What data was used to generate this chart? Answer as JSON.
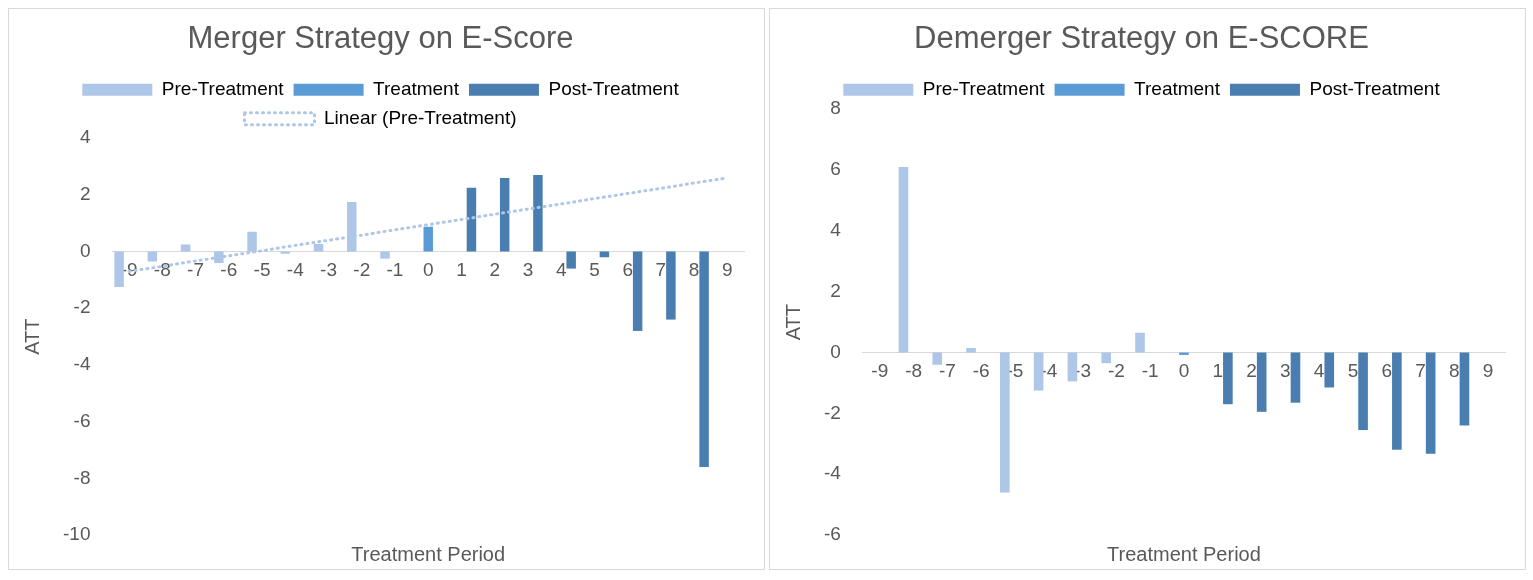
{
  "chart_data": [
    {
      "type": "bar",
      "title": "Merger Strategy on E-Score",
      "xlabel": "Treatment Period",
      "ylabel": "ATT",
      "legend": "top",
      "categories": [
        "-9",
        "-8",
        "-7",
        "-6",
        "-5",
        "-4",
        "-3",
        "-2",
        "-1",
        "0",
        "1",
        "2",
        "3",
        "4",
        "5",
        "6",
        "7",
        "8",
        "9"
      ],
      "ylim": [
        -10,
        4
      ],
      "yticks": [
        -10,
        -8,
        -6,
        -4,
        -2,
        0,
        2,
        4
      ],
      "series": [
        {
          "name": "Pre-Treatment",
          "color": "#aec6e8",
          "values": [
            -1.25,
            -0.35,
            0.25,
            -0.4,
            0.7,
            -0.08,
            0.27,
            1.75,
            -0.25,
            null,
            null,
            null,
            null,
            null,
            null,
            null,
            null,
            null,
            null
          ]
        },
        {
          "name": "Treatment",
          "color": "#5b9bd5",
          "values": [
            null,
            null,
            null,
            null,
            null,
            null,
            null,
            null,
            null,
            0.88,
            null,
            null,
            null,
            null,
            null,
            null,
            null,
            null,
            null
          ]
        },
        {
          "name": "Post-Treatment",
          "color": "#4a7eb0",
          "values": [
            null,
            null,
            null,
            null,
            null,
            null,
            null,
            null,
            null,
            null,
            2.25,
            2.6,
            2.7,
            -0.6,
            -0.2,
            -2.8,
            -2.4,
            -7.6,
            null
          ]
        },
        {
          "name": "Linear (Pre-Treatment)",
          "type": "line",
          "line_style": "dotted",
          "marker": "none",
          "color": "#aec6e8",
          "values": [
            -0.7,
            -0.52,
            -0.33,
            -0.15,
            0.03,
            0.22,
            0.4,
            0.58,
            0.77,
            0.95,
            1.13,
            1.32,
            1.5,
            1.68,
            1.87,
            2.05,
            2.23,
            2.42,
            2.6
          ]
        }
      ]
    },
    {
      "type": "bar",
      "title": "Demerger Strategy on E-SCORE",
      "xlabel": "Treatment Period",
      "ylabel": "ATT",
      "legend": "top",
      "categories": [
        "-9",
        "-8",
        "-7",
        "-6",
        "-5",
        "-4",
        "-3",
        "-2",
        "-1",
        "0",
        "1",
        "2",
        "3",
        "4",
        "5",
        "6",
        "7",
        "8",
        "9"
      ],
      "ylim": [
        -6,
        8
      ],
      "yticks": [
        -6,
        -4,
        -2,
        0,
        2,
        4,
        6,
        8
      ],
      "series": [
        {
          "name": "Pre-Treatment",
          "color": "#aec6e8",
          "values": [
            null,
            6.1,
            -0.4,
            0.15,
            -4.6,
            -1.25,
            -0.95,
            -0.35,
            0.65,
            null,
            null,
            null,
            null,
            null,
            null,
            null,
            null,
            null,
            null
          ]
        },
        {
          "name": "Treatment",
          "color": "#5b9bd5",
          "values": [
            null,
            null,
            null,
            null,
            null,
            null,
            null,
            null,
            null,
            -0.08,
            null,
            null,
            null,
            null,
            null,
            null,
            null,
            null,
            null
          ]
        },
        {
          "name": "Post-Treatment",
          "color": "#4a7eb0",
          "values": [
            null,
            null,
            null,
            null,
            null,
            null,
            null,
            null,
            null,
            null,
            -1.7,
            -1.95,
            -1.65,
            -1.15,
            -2.55,
            -3.2,
            -3.33,
            -2.4,
            null
          ]
        }
      ]
    }
  ]
}
